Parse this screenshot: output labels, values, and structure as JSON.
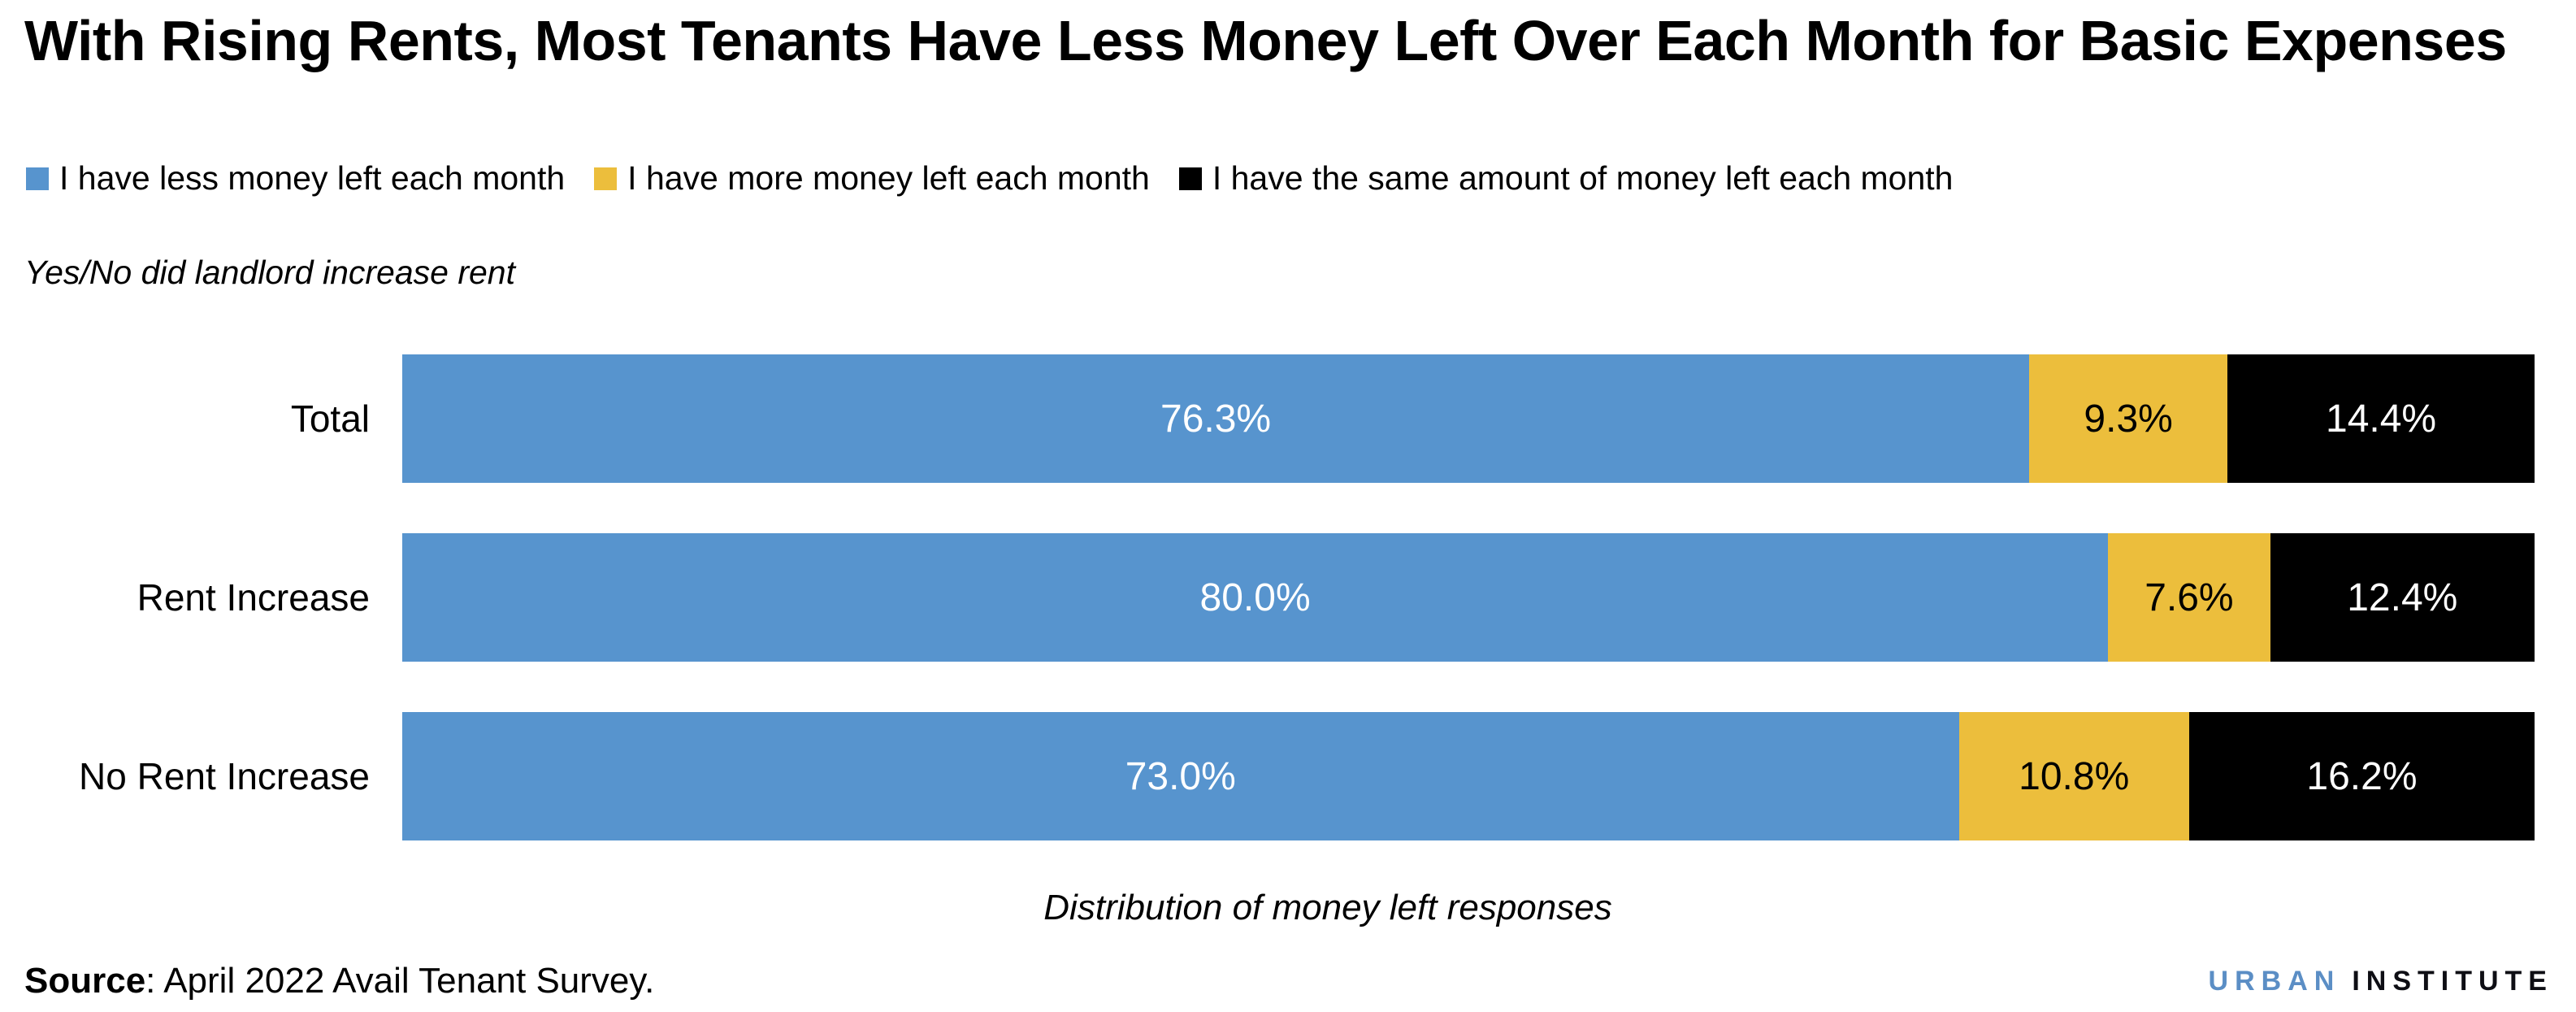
{
  "title": "With Rising Rents, Most Tenants Have Less Money Left Over Each Month for Basic Expenses",
  "subtitle": "Yes/No did landlord increase rent",
  "chart_data": {
    "type": "bar",
    "orientation": "horizontal",
    "stacked": true,
    "title": "With Rising Rents, Most Tenants Have Less Money Left Over Each Month for Basic Expenses",
    "xlabel": "Distribution of money left responses",
    "ylabel": "Yes/No did landlord increase rent",
    "xlim": [
      0,
      100
    ],
    "legend_position": "top",
    "categories": [
      "Total",
      "Rent Increase",
      "No Rent Increase"
    ],
    "series": [
      {
        "name": "I have less money left each month",
        "color": "#5794CE",
        "label_color": "#FFFFFF",
        "values": [
          76.3,
          80.0,
          73.0
        ]
      },
      {
        "name": "I have more money left each month",
        "color": "#ECBE3C",
        "label_color": "#000000",
        "values": [
          9.3,
          7.6,
          10.8
        ]
      },
      {
        "name": "I have the same amount of money left each month",
        "color": "#000000",
        "label_color": "#FFFFFF",
        "values": [
          14.4,
          12.4,
          16.2
        ]
      }
    ],
    "value_labels": [
      [
        "76.3%",
        "9.3%",
        "14.4%"
      ],
      [
        "80.0%",
        "7.6%",
        "12.4%"
      ],
      [
        "73.0%",
        "10.8%",
        "16.2%"
      ]
    ]
  },
  "source": {
    "label": "Source",
    "text": ": April 2022 Avail Tenant Survey."
  },
  "logo": {
    "part1": "URBAN",
    "part2": "INSTITUTE",
    "part1_color": "#5B8EC5",
    "part2_color": "#0E0E14"
  }
}
